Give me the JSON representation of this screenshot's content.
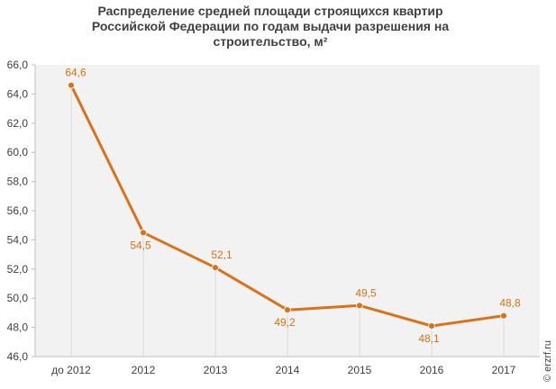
{
  "chart_data": {
    "type": "line",
    "title_lines": [
      "Распределение средней площади строящихся  квартир",
      "Российской  Федерации по годам выдачи разрешения на",
      "строительство,  м²"
    ],
    "categories": [
      "до 2012",
      "2012",
      "2013",
      "2014",
      "2015",
      "2016",
      "2017"
    ],
    "values": [
      64.6,
      54.5,
      52.1,
      49.2,
      49.5,
      48.1,
      48.8
    ],
    "data_labels": [
      "64,6",
      "54,5",
      "52,1",
      "49,2",
      "49,5",
      "48,1",
      "48,8"
    ],
    "y_ticks": [
      46.0,
      48.0,
      50.0,
      52.0,
      54.0,
      56.0,
      58.0,
      60.0,
      62.0,
      64.0,
      66.0
    ],
    "y_tick_labels": [
      "46,0",
      "48,0",
      "50,0",
      "52,0",
      "54,0",
      "56,0",
      "58,0",
      "60,0",
      "62,0",
      "64,0",
      "66,0"
    ],
    "ylim": [
      46,
      66
    ],
    "xlabel": "",
    "ylabel": "",
    "grid": false,
    "drop_lines": true,
    "colors": {
      "line": "#d9731b",
      "label": "#d47316",
      "plot_bg": "#f2f2f2",
      "drop_line": "#d9d9d9",
      "axis": "#bfbfbf"
    },
    "watermark": "© erzrf.ru"
  }
}
